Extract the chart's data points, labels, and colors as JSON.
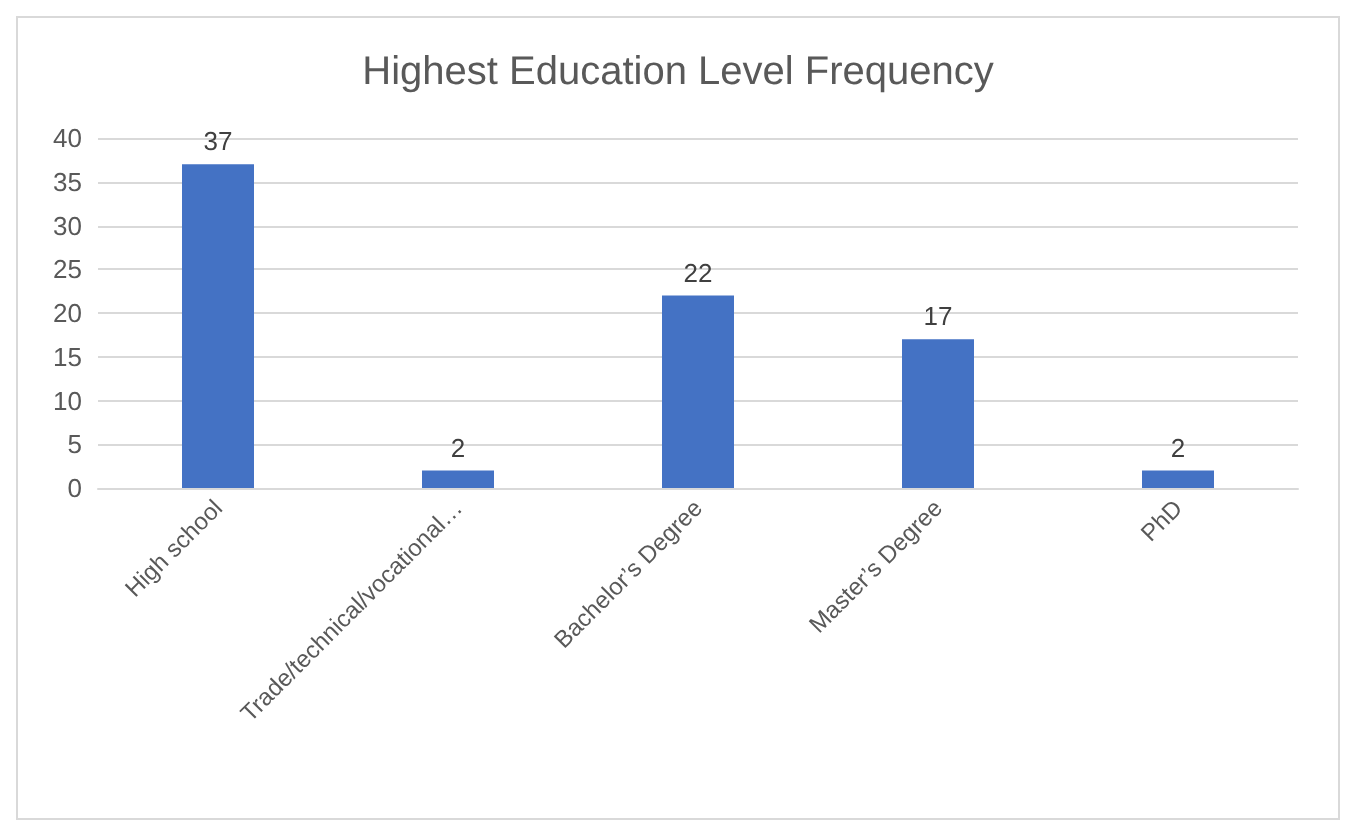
{
  "chart_data": {
    "type": "bar",
    "title": "Highest Education Level Frequency",
    "categories": [
      "High school",
      "Trade/technical/vocational…",
      "Bachelor’s Degree",
      "Master’s Degree",
      "PhD"
    ],
    "values": [
      37,
      2,
      22,
      17,
      2
    ],
    "color": "#4472c4",
    "ylim": [
      0,
      40
    ],
    "yticks": [
      0,
      5,
      10,
      15,
      20,
      25,
      30,
      35,
      40
    ],
    "grid": "y",
    "data_labels": true
  }
}
